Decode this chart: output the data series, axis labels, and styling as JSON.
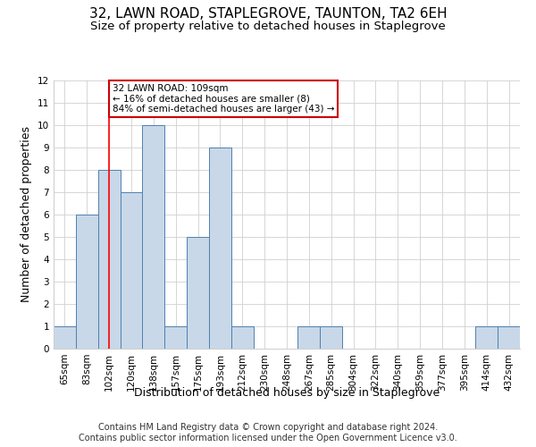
{
  "title": "32, LAWN ROAD, STAPLEGROVE, TAUNTON, TA2 6EH",
  "subtitle": "Size of property relative to detached houses in Staplegrove",
  "xlabel": "Distribution of detached houses by size in Staplegrove",
  "ylabel": "Number of detached properties",
  "footer_line1": "Contains HM Land Registry data © Crown copyright and database right 2024.",
  "footer_line2": "Contains public sector information licensed under the Open Government Licence v3.0.",
  "categories": [
    "65sqm",
    "83sqm",
    "102sqm",
    "120sqm",
    "138sqm",
    "157sqm",
    "175sqm",
    "193sqm",
    "212sqm",
    "230sqm",
    "248sqm",
    "267sqm",
    "285sqm",
    "304sqm",
    "322sqm",
    "340sqm",
    "359sqm",
    "377sqm",
    "395sqm",
    "414sqm",
    "432sqm"
  ],
  "values": [
    1,
    6,
    8,
    7,
    10,
    1,
    5,
    9,
    1,
    0,
    0,
    1,
    1,
    0,
    0,
    0,
    0,
    0,
    0,
    1,
    1
  ],
  "bar_color": "#c8d8e8",
  "bar_edge_color": "#5080b0",
  "red_line_index": 2,
  "annotation_text": "32 LAWN ROAD: 109sqm\n← 16% of detached houses are smaller (8)\n84% of semi-detached houses are larger (43) →",
  "annotation_box_color": "#ffffff",
  "annotation_box_edge_color": "#cc0000",
  "ylim": [
    0,
    12
  ],
  "yticks": [
    0,
    1,
    2,
    3,
    4,
    5,
    6,
    7,
    8,
    9,
    10,
    11,
    12
  ],
  "grid_color": "#d0d0d0",
  "background_color": "#ffffff",
  "title_fontsize": 11,
  "subtitle_fontsize": 9.5,
  "axis_label_fontsize": 9,
  "tick_fontsize": 7.5,
  "footer_fontsize": 7
}
